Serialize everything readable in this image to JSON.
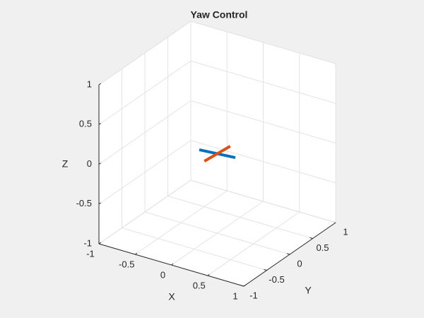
{
  "chart_data": {
    "type": "line3d",
    "title": "Yaw Control",
    "xlabel": "X",
    "ylabel": "Y",
    "zlabel": "Z",
    "xlim": [
      -1,
      1
    ],
    "ylim": [
      -1,
      1
    ],
    "zlim": [
      -1,
      1
    ],
    "xticks": [
      -1,
      -0.5,
      0,
      0.5,
      1
    ],
    "yticks": [
      -1,
      -0.5,
      0,
      0.5,
      1
    ],
    "zticks": [
      -1,
      -0.5,
      0,
      0.5,
      1
    ],
    "grid": true,
    "series": [
      {
        "color": "#0072bd",
        "x": [
          -0.23,
          0.23
        ],
        "y": [
          -0.03,
          0.03
        ],
        "z": [
          0,
          0
        ]
      },
      {
        "color": "#d95319",
        "x": [
          -0.02,
          0.02
        ],
        "y": [
          -0.25,
          0.25
        ],
        "z": [
          0,
          0
        ]
      }
    ]
  }
}
